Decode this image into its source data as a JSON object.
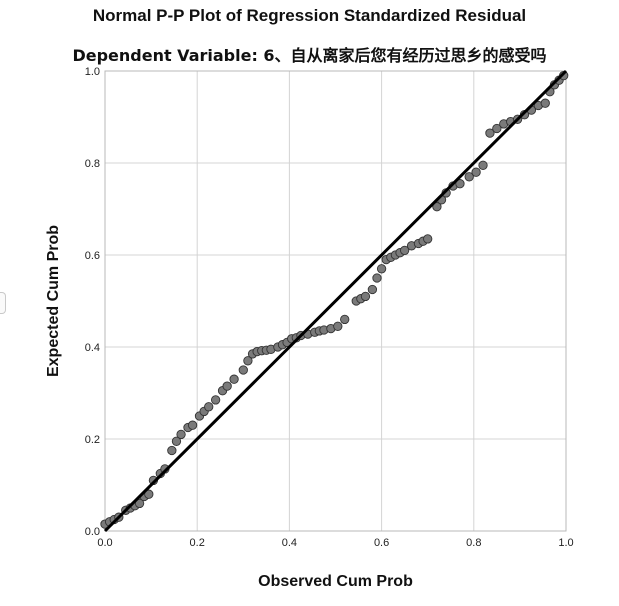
{
  "chart_data": {
    "type": "scatter",
    "title": "Normal P-P Plot of Regression Standardized Residual",
    "subtitle": "Dependent Variable: 6、自从离家后您有经历过思乡的感受吗",
    "xlabel": "Observed Cum Prob",
    "ylabel": "Expected Cum Prob",
    "xlim": [
      0.0,
      1.0
    ],
    "ylim": [
      0.0,
      1.0
    ],
    "xticks": [
      "0.0",
      "0.2",
      "0.4",
      "0.6",
      "0.8",
      "1.0"
    ],
    "yticks": [
      "0.0",
      "0.2",
      "0.4",
      "0.6",
      "0.8",
      "1.0"
    ],
    "grid": true,
    "reference_line": [
      [
        0.0,
        0.0
      ],
      [
        1.0,
        1.0
      ]
    ],
    "point_color": "#7a7a7a",
    "line_color": "#000000",
    "points": [
      [
        0.0,
        0.015
      ],
      [
        0.01,
        0.02
      ],
      [
        0.02,
        0.025
      ],
      [
        0.03,
        0.03
      ],
      [
        0.045,
        0.045
      ],
      [
        0.055,
        0.05
      ],
      [
        0.065,
        0.055
      ],
      [
        0.075,
        0.06
      ],
      [
        0.085,
        0.075
      ],
      [
        0.095,
        0.08
      ],
      [
        0.105,
        0.11
      ],
      [
        0.12,
        0.125
      ],
      [
        0.13,
        0.135
      ],
      [
        0.145,
        0.175
      ],
      [
        0.155,
        0.195
      ],
      [
        0.165,
        0.21
      ],
      [
        0.18,
        0.225
      ],
      [
        0.19,
        0.23
      ],
      [
        0.205,
        0.25
      ],
      [
        0.215,
        0.26
      ],
      [
        0.225,
        0.27
      ],
      [
        0.24,
        0.285
      ],
      [
        0.255,
        0.305
      ],
      [
        0.265,
        0.315
      ],
      [
        0.28,
        0.33
      ],
      [
        0.3,
        0.35
      ],
      [
        0.31,
        0.37
      ],
      [
        0.32,
        0.385
      ],
      [
        0.33,
        0.39
      ],
      [
        0.34,
        0.392
      ],
      [
        0.35,
        0.393
      ],
      [
        0.36,
        0.395
      ],
      [
        0.375,
        0.4
      ],
      [
        0.385,
        0.405
      ],
      [
        0.395,
        0.41
      ],
      [
        0.405,
        0.418
      ],
      [
        0.415,
        0.42
      ],
      [
        0.425,
        0.425
      ],
      [
        0.44,
        0.428
      ],
      [
        0.455,
        0.432
      ],
      [
        0.465,
        0.435
      ],
      [
        0.475,
        0.437
      ],
      [
        0.49,
        0.44
      ],
      [
        0.505,
        0.445
      ],
      [
        0.52,
        0.46
      ],
      [
        0.545,
        0.5
      ],
      [
        0.555,
        0.505
      ],
      [
        0.565,
        0.51
      ],
      [
        0.58,
        0.525
      ],
      [
        0.59,
        0.55
      ],
      [
        0.6,
        0.57
      ],
      [
        0.61,
        0.59
      ],
      [
        0.62,
        0.595
      ],
      [
        0.63,
        0.6
      ],
      [
        0.64,
        0.605
      ],
      [
        0.65,
        0.61
      ],
      [
        0.665,
        0.62
      ],
      [
        0.68,
        0.625
      ],
      [
        0.69,
        0.63
      ],
      [
        0.7,
        0.635
      ],
      [
        0.72,
        0.705
      ],
      [
        0.73,
        0.72
      ],
      [
        0.74,
        0.735
      ],
      [
        0.755,
        0.75
      ],
      [
        0.77,
        0.755
      ],
      [
        0.79,
        0.77
      ],
      [
        0.805,
        0.78
      ],
      [
        0.82,
        0.795
      ],
      [
        0.835,
        0.865
      ],
      [
        0.85,
        0.875
      ],
      [
        0.865,
        0.885
      ],
      [
        0.88,
        0.89
      ],
      [
        0.895,
        0.895
      ],
      [
        0.91,
        0.905
      ],
      [
        0.925,
        0.915
      ],
      [
        0.94,
        0.925
      ],
      [
        0.955,
        0.93
      ],
      [
        0.965,
        0.955
      ],
      [
        0.975,
        0.97
      ],
      [
        0.985,
        0.98
      ],
      [
        0.995,
        0.99
      ]
    ]
  }
}
